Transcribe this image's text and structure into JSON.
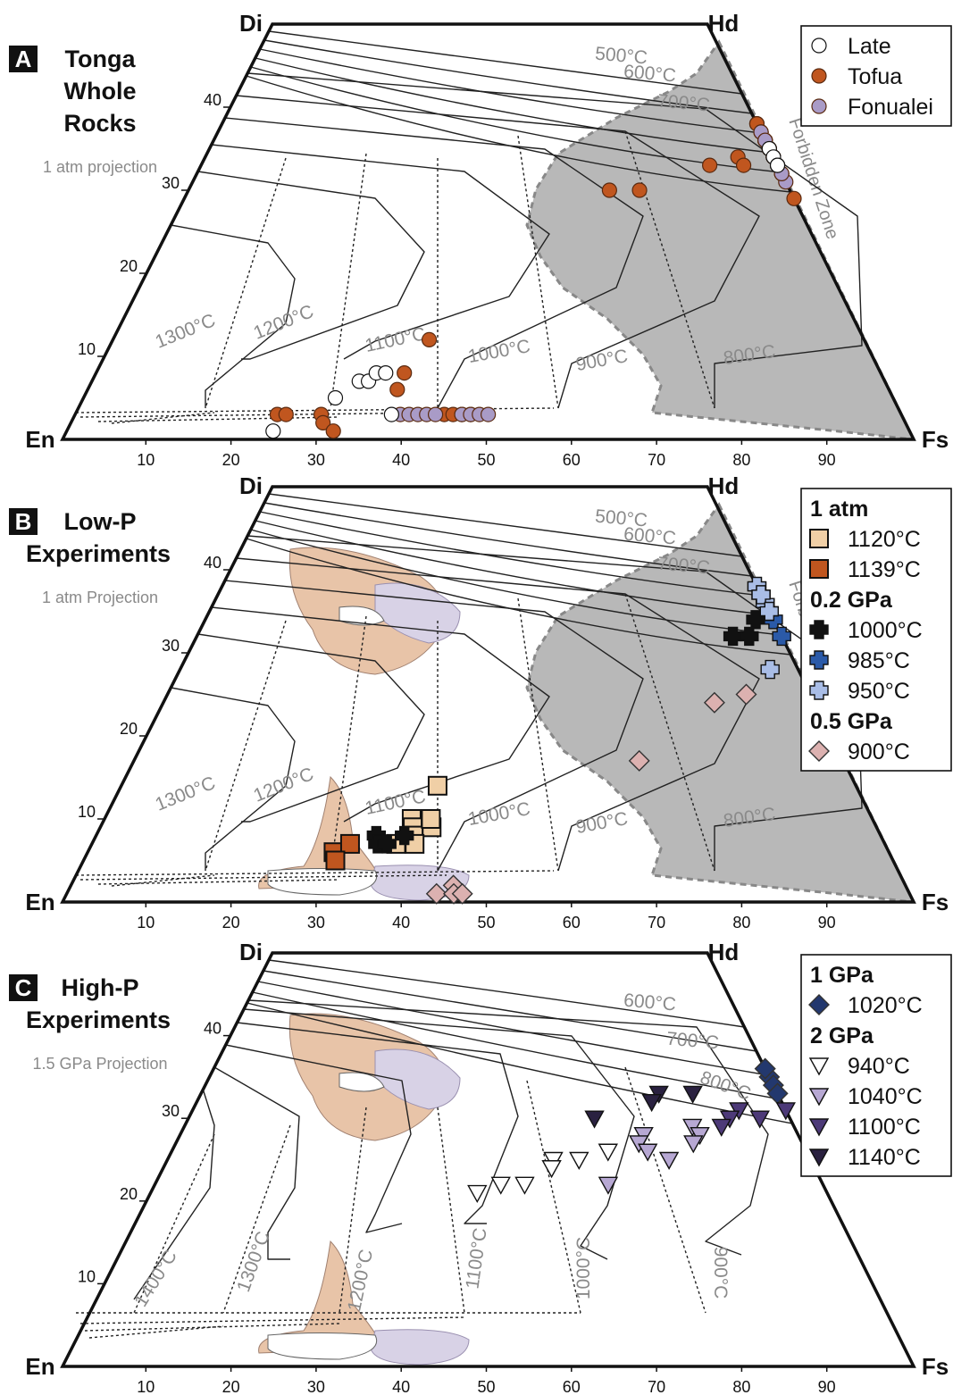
{
  "figure": {
    "panels": [
      {
        "letter": "A",
        "title_lines": [
          "Tonga",
          "Whole",
          "Rocks"
        ],
        "projection": "1 atm projection",
        "legend": [
          {
            "label": "Late",
            "fill": "#ffffff",
            "marker": "circle"
          },
          {
            "label": "Tofua",
            "fill": "#c0561f",
            "marker": "circle"
          },
          {
            "label": "Fonualei",
            "fill": "#a99bc7",
            "marker": "circle"
          }
        ]
      },
      {
        "letter": "B",
        "title_lines": [
          "Low-P",
          "Experiments"
        ],
        "projection": "1 atm Projection",
        "legend": [
          {
            "header": "1 atm"
          },
          {
            "label": "1120°C",
            "fill": "#f0cfa6",
            "marker": "square"
          },
          {
            "label": "1139°C",
            "fill": "#c0561f",
            "marker": "square"
          },
          {
            "header": "0.2 GPa"
          },
          {
            "label": "1000°C",
            "fill": "#111111",
            "marker": "cross"
          },
          {
            "label": "985°C",
            "fill": "#2b5aa8",
            "marker": "cross"
          },
          {
            "label": "950°C",
            "fill": "#a9bde6",
            "marker": "cross"
          },
          {
            "header": "0.5 GPa"
          },
          {
            "label": "900°C",
            "fill": "#dcb1b0",
            "marker": "diamond"
          }
        ]
      },
      {
        "letter": "C",
        "title_lines": [
          "High-P",
          "Experiments"
        ],
        "projection": "1.5 GPa Projection",
        "legend": [
          {
            "header": "1 GPa"
          },
          {
            "label": "1020°C",
            "fill": "#23386e",
            "marker": "diamond"
          },
          {
            "header": "2 GPa"
          },
          {
            "label": "940°C",
            "fill": "#ffffff",
            "marker": "triangle"
          },
          {
            "label": "1040°C",
            "fill": "#b7a8d3",
            "marker": "triangle"
          },
          {
            "label": "1100°C",
            "fill": "#4d3a78",
            "marker": "triangle"
          },
          {
            "label": "1140°C",
            "fill": "#2a2140",
            "marker": "triangle"
          }
        ]
      }
    ],
    "corner_labels": {
      "Di": "Di",
      "Hd": "Hd",
      "En": "En",
      "Fs": "Fs"
    },
    "forbidden_zone": "Forbidden Zone",
    "isotherms_low": [
      "1300°C",
      "1200°C",
      "1100°C",
      "1000°C",
      "900°C",
      "800°C",
      "700°C",
      "600°C",
      "500°C"
    ],
    "isotherms_high": [
      "1400°C",
      "1300°C",
      "1200°C",
      "1100°C",
      "1000°C",
      "900°C",
      "800°C",
      "700°C",
      "600°C"
    ],
    "colors": {
      "tofua": "#c0561f",
      "fonualei": "#a99bc7",
      "tofua_field": "#e8c4a8",
      "fonualei_field": "#d8d2e6",
      "forbidden": "#b8b8b8"
    }
  },
  "chart_data": [
    {
      "type": "scatter",
      "panel": "A",
      "title": "Tonga Whole Rocks",
      "note": "1 atm projection",
      "axis": {
        "x_ticks": [
          10,
          20,
          30,
          40,
          50,
          60,
          70,
          80,
          90
        ],
        "y_ticks": [
          10,
          20,
          30,
          40
        ]
      },
      "series": [
        {
          "name": "Tofua",
          "points": [
            [
              23,
              3
            ],
            [
              24,
              3
            ],
            [
              28,
              3
            ],
            [
              28,
              36
            ],
            [
              29,
              36
            ],
            [
              30,
              36
            ],
            [
              30,
              34
            ],
            [
              30,
              33
            ],
            [
              31,
              37
            ],
            [
              31,
              35
            ],
            [
              32,
              37
            ],
            [
              32,
              34
            ],
            [
              32,
              33
            ],
            [
              33,
              38
            ],
            [
              33,
              36
            ],
            [
              33,
              35
            ],
            [
              34,
              36
            ],
            [
              34,
              34
            ],
            [
              35,
              37
            ],
            [
              35,
              35
            ],
            [
              36,
              34
            ],
            [
              36,
              32
            ],
            [
              37,
              38
            ],
            [
              37,
              36
            ],
            [
              38,
              35
            ],
            [
              39,
              36
            ],
            [
              40,
              37
            ],
            [
              40,
              35
            ],
            [
              41,
              36
            ],
            [
              42,
              29
            ],
            [
              28,
              30
            ],
            [
              30,
              30
            ],
            [
              32,
              12
            ],
            [
              33,
              8
            ],
            [
              34,
              6
            ],
            [
              29,
              2
            ],
            [
              31,
              1
            ],
            [
              42,
              3
            ],
            [
              43,
              3
            ],
            [
              44,
              3
            ],
            [
              45,
              3
            ]
          ]
        },
        {
          "name": "Fonualei",
          "points": [
            [
              37,
              36
            ],
            [
              38,
              37
            ],
            [
              39,
              34
            ],
            [
              40,
              35
            ],
            [
              41,
              36
            ],
            [
              42,
              34
            ],
            [
              43,
              35
            ],
            [
              44,
              33
            ],
            [
              45,
              36
            ],
            [
              45,
              32
            ],
            [
              46,
              34
            ],
            [
              46,
              31
            ],
            [
              47,
              32
            ],
            [
              37,
              3
            ],
            [
              38,
              3
            ],
            [
              39,
              3
            ],
            [
              40,
              3
            ],
            [
              41,
              3
            ],
            [
              44,
              3
            ],
            [
              45,
              3
            ],
            [
              46,
              3
            ],
            [
              47,
              3
            ]
          ]
        },
        {
          "name": "Late",
          "points": [
            [
              31,
              35
            ],
            [
              32,
              34
            ],
            [
              34,
              33
            ],
            [
              37,
              33
            ],
            [
              28,
              5
            ],
            [
              29,
              7
            ],
            [
              30,
              7
            ],
            [
              30,
              8
            ],
            [
              31,
              8
            ],
            [
              24,
              1
            ],
            [
              36,
              3
            ]
          ]
        }
      ]
    },
    {
      "type": "scatter",
      "panel": "B",
      "title": "Low-P Experiments",
      "note": "1 atm Projection",
      "series": [
        {
          "name": "1 atm 1120°C",
          "marker": "square",
          "points": [
            [
              31,
              14
            ],
            [
              32,
              10
            ],
            [
              33,
              9
            ],
            [
              34,
              8
            ],
            [
              35,
              9
            ],
            [
              33,
              7
            ],
            [
              35,
              7
            ],
            [
              34,
              10
            ]
          ]
        },
        {
          "name": "1 atm 1139°C",
          "marker": "square",
          "points": [
            [
              27,
              6
            ],
            [
              28,
              7
            ],
            [
              28,
              5
            ]
          ]
        },
        {
          "name": "0.2 GPa 1000°C",
          "marker": "cross",
          "points": [
            [
              31,
              34
            ],
            [
              33,
              32
            ],
            [
              34,
              32
            ],
            [
              30,
              8
            ],
            [
              31,
              7
            ],
            [
              32,
              7
            ],
            [
              33,
              8
            ]
          ]
        },
        {
          "name": "0.2 GPa 985°C",
          "marker": "cross",
          "points": [
            [
              35,
              37
            ],
            [
              36,
              36
            ],
            [
              36,
              34
            ],
            [
              37,
              35
            ],
            [
              37,
              32
            ],
            [
              36,
              38
            ]
          ]
        },
        {
          "name": "0.2 GPa 950°C",
          "marker": "cross",
          "points": [
            [
              31,
              38
            ],
            [
              32,
              37
            ],
            [
              33,
              36
            ],
            [
              34,
              37
            ],
            [
              30,
              35
            ],
            [
              42,
              28
            ]
          ]
        },
        {
          "name": "0.5 GPa 900°C",
          "marker": "diamond",
          "points": [
            [
              44,
              24
            ],
            [
              45,
              25
            ],
            [
              47,
              17
            ],
            [
              43,
              1
            ],
            [
              44,
              2
            ],
            [
              45,
              1
            ],
            [
              46,
              1
            ]
          ]
        }
      ]
    },
    {
      "type": "scatter",
      "panel": "C",
      "title": "High-P Experiments",
      "note": "1.5 GPa Projection",
      "series": [
        {
          "name": "1 GPa 1020°C",
          "marker": "diamond",
          "points": [
            [
              35,
              36
            ],
            [
              36,
              35
            ],
            [
              37,
              34
            ],
            [
              38,
              33
            ],
            [
              36,
              33
            ],
            [
              37,
              36
            ]
          ]
        },
        {
          "name": "2 GPa 940°C",
          "marker": "triangle",
          "points": [
            [
              30,
              25
            ],
            [
              31,
              24
            ],
            [
              32,
              25
            ],
            [
              33,
              26
            ],
            [
              28,
              21
            ],
            [
              29,
              22
            ],
            [
              31,
              22
            ]
          ]
        },
        {
          "name": "2 GPa 1040°C",
          "marker": "triangle",
          "points": [
            [
              33,
              28
            ],
            [
              34,
              27
            ],
            [
              35,
              29
            ],
            [
              36,
              26
            ],
            [
              37,
              28
            ],
            [
              38,
              27
            ],
            [
              39,
              25
            ],
            [
              38,
              22
            ]
          ]
        },
        {
          "name": "2 GPa 1100°C",
          "marker": "triangle",
          "points": [
            [
              35,
              31
            ],
            [
              36,
              30
            ],
            [
              37,
              29
            ],
            [
              38,
              30
            ],
            [
              39,
              31
            ]
          ]
        },
        {
          "name": "2 GPa 1140°C",
          "marker": "triangle",
          "points": [
            [
              27,
              33
            ],
            [
              28,
              32
            ],
            [
              29,
              33
            ],
            [
              27,
              30
            ]
          ]
        }
      ]
    }
  ]
}
